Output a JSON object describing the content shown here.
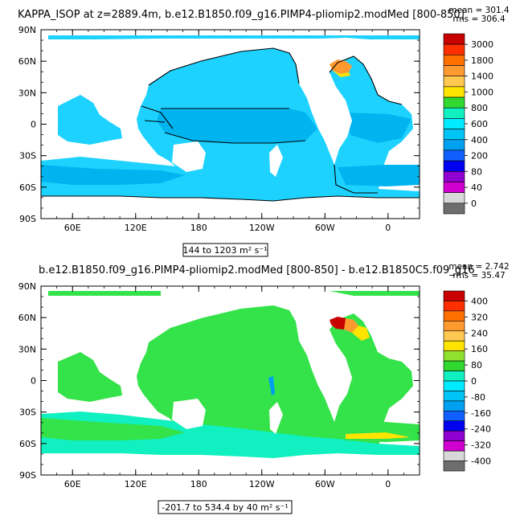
{
  "chart_data": [
    {
      "type": "heatmap",
      "title": "KAPPA_ISOP at z=2889.4m, b.e12.B1850.f09_g16.PIMP4-pliomip2.modMed [800-850]",
      "stat_mean": "mean = 301.4",
      "stat_rms": "rms = 306.4",
      "range_label": "144 to 1203 m² s⁻¹",
      "x_ticks": [
        "60E",
        "120E",
        "180",
        "120W",
        "60W",
        "0"
      ],
      "x_values": [
        60,
        120,
        180,
        240,
        300,
        360
      ],
      "y_ticks": [
        "90N",
        "60N",
        "30N",
        "0",
        "30S",
        "60S",
        "90S"
      ],
      "y_values": [
        90,
        60,
        30,
        0,
        -30,
        -60,
        -90
      ],
      "xlim": [
        30,
        390
      ],
      "ylim": [
        -90,
        90
      ],
      "colorbar_levels": [
        "3000",
        "1800",
        "1400",
        "1000",
        "800",
        "600",
        "400",
        "200",
        "80",
        "40",
        "0"
      ],
      "colorbar_colors": [
        "#c80000",
        "#ff3000",
        "#ff7000",
        "#ff9a30",
        "#ffc850",
        "#ffe400",
        "#30d830",
        "#10f0c0",
        "#00ebff",
        "#00c4f5",
        "#00a0f0",
        "#1060ff",
        "#0000f0",
        "#9000d0",
        "#d000d0",
        "#d8d8d8",
        "#6e6e6e"
      ],
      "dominant_field_color": "#1ed2ff",
      "secondary_field_color": "#00b4f0",
      "hotspot_color": "#ff9a30"
    },
    {
      "type": "heatmap",
      "title": "b.e12.B1850.f09_g16.PIMP4-pliomip2.modMed [800-850] - b.e12.B1850C5.f09_g16",
      "stat_mean": "mean = 2.742",
      "stat_rms": "rms = 35.47",
      "range_label": "-201.7 to 534.4 by 40 m² s⁻¹",
      "x_ticks": [
        "60E",
        "120E",
        "180",
        "120W",
        "60W",
        "0"
      ],
      "x_values": [
        60,
        120,
        180,
        240,
        300,
        360
      ],
      "y_ticks": [
        "90N",
        "60N",
        "30N",
        "0",
        "30S",
        "60S",
        "90S"
      ],
      "y_values": [
        90,
        60,
        30,
        0,
        -30,
        -60,
        -90
      ],
      "xlim": [
        30,
        390
      ],
      "ylim": [
        -90,
        90
      ],
      "colorbar_levels": [
        "400",
        "320",
        "240",
        "160",
        "80",
        "0",
        "-80",
        "-160",
        "-240",
        "-320",
        "-400"
      ],
      "colorbar_colors": [
        "#c80000",
        "#ff3000",
        "#ff7000",
        "#ff9a30",
        "#ffc850",
        "#ffe400",
        "#90e030",
        "#30d830",
        "#10f0c0",
        "#00ebff",
        "#00c4f5",
        "#00a0f0",
        "#1060ff",
        "#0000f0",
        "#9000d0",
        "#d000d0",
        "#d8d8d8",
        "#6e6e6e"
      ],
      "dominant_field_color": "#34e24a",
      "secondary_field_color": "#10f0c0",
      "hotspot_color": "#c80000"
    }
  ]
}
